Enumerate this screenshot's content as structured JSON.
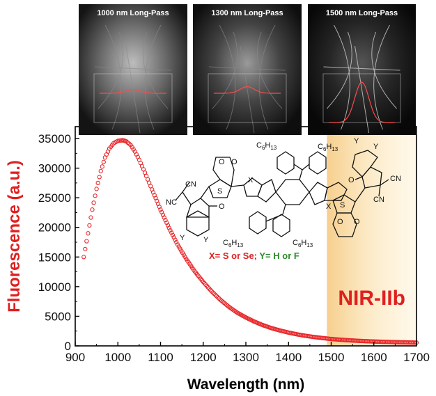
{
  "chart_data": {
    "type": "scatter",
    "xlabel": "Wavelength (nm)",
    "ylabel": "Fluorescence (a.u.)",
    "xlim": [
      900,
      1700
    ],
    "ylim": [
      0,
      37000
    ],
    "xticks": [
      900,
      1000,
      1100,
      1200,
      1300,
      1400,
      1500,
      1600,
      1700
    ],
    "yticks": [
      0,
      5000,
      10000,
      15000,
      20000,
      25000,
      30000,
      35000
    ],
    "series": [
      {
        "color": "#e8282b",
        "marker": "open-circle",
        "x": [
          920,
          930,
          940,
          950,
          960,
          970,
          980,
          990,
          1000,
          1010,
          1015,
          1020,
          1030,
          1040,
          1050,
          1060,
          1070,
          1080,
          1100,
          1120,
          1140,
          1160,
          1180,
          1200,
          1220,
          1240,
          1260,
          1280,
          1300,
          1320,
          1340,
          1360,
          1380,
          1400,
          1420,
          1440,
          1460,
          1480,
          1500,
          1520,
          1540,
          1560,
          1580,
          1600,
          1620,
          1640,
          1660,
          1680,
          1700
        ],
        "y": [
          15000,
          19000,
          23000,
          26500,
          29500,
          31800,
          33300,
          34200,
          34600,
          34700,
          34650,
          34500,
          33900,
          32800,
          31400,
          29800,
          28100,
          26400,
          23000,
          19900,
          17100,
          14700,
          12600,
          10800,
          9200,
          7800,
          6600,
          5600,
          4800,
          4100,
          3500,
          3000,
          2600,
          2250,
          1950,
          1700,
          1500,
          1320,
          1170,
          1050,
          950,
          870,
          800,
          740,
          690,
          650,
          610,
          580,
          550
        ]
      }
    ],
    "annotations": {
      "band_label": "NIR-IIb",
      "band_range": [
        1490,
        1700
      ],
      "band_color": "#f5c77a",
      "structure_legend": {
        "x_part": "X= S or Se;",
        "y_part": " Y= H or F",
        "x_color": "#e02020",
        "y_color": "#2e8b2e"
      },
      "structure_labels": {
        "sub_left": "C6H13",
        "x_atom": "X",
        "y_atom": "Y",
        "s_atom": "S",
        "o_atom": "O",
        "cn": "CN",
        "nc": "NC"
      }
    },
    "inset_panels": [
      {
        "title": "1000 nm Long-Pass",
        "peak_level": 0.25
      },
      {
        "title": "1300 nm Long-Pass",
        "peak_level": 0.45
      },
      {
        "title": "1500 nm Long-Pass",
        "peak_level": 1.0
      }
    ]
  },
  "colors": {
    "axis": "#000000",
    "series": "#e8282b",
    "ylabel": "#e01f1f",
    "panel_bg": "#1c1c1c",
    "panel_trace": "#ff4a4a"
  }
}
